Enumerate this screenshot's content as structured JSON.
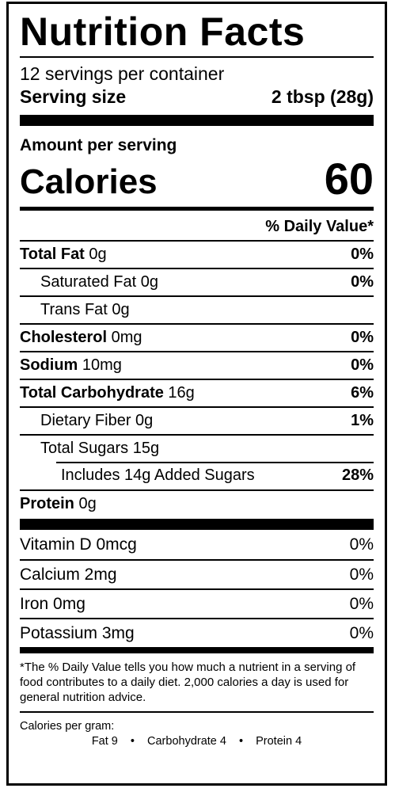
{
  "title": "Nutrition Facts",
  "servings_per_container": "12 servings per container",
  "serving_size": {
    "label": "Serving size",
    "value": "2 tbsp (28g)"
  },
  "amount_per_serving": "Amount per serving",
  "calories": {
    "label": "Calories",
    "value": "60"
  },
  "daily_value_header": "% Daily Value*",
  "nutrients": [
    {
      "name": "Total Fat",
      "amount": " 0g",
      "dv": "0%"
    },
    {
      "name": "Saturated Fat 0g",
      "amount": "",
      "dv": "0%"
    },
    {
      "name": "Trans Fat 0g",
      "amount": "",
      "dv": ""
    },
    {
      "name": "Cholesterol",
      "amount": " 0mg",
      "dv": "0%"
    },
    {
      "name": "Sodium",
      "amount": " 10mg",
      "dv": "0%"
    },
    {
      "name": "Total Carbohydrate",
      "amount": " 16g",
      "dv": "6%"
    },
    {
      "name": "Dietary Fiber 0g",
      "amount": "",
      "dv": "1%"
    },
    {
      "name": "Total Sugars 15g",
      "amount": "",
      "dv": ""
    },
    {
      "name": "Includes 14g Added Sugars",
      "amount": "",
      "dv": "28%"
    },
    {
      "name": "Protein",
      "amount": " 0g",
      "dv": ""
    }
  ],
  "vitamins": [
    {
      "name": "Vitamin D 0mcg",
      "dv": "0%"
    },
    {
      "name": "Calcium 2mg",
      "dv": "0%"
    },
    {
      "name": "Iron 0mg",
      "dv": "0%"
    },
    {
      "name": "Potassium 3mg",
      "dv": "0%"
    }
  ],
  "footnote": "*The % Daily Value tells you how much a nutrient in a serving of food contributes to a daily diet. 2,000 calories a day is used for general nutrition advice.",
  "calories_per_gram": {
    "label": "Calories per gram:",
    "fat": "Fat 9",
    "carbohydrate": "Carbohydrate 4",
    "protein": "Protein 4",
    "separator": "•"
  }
}
